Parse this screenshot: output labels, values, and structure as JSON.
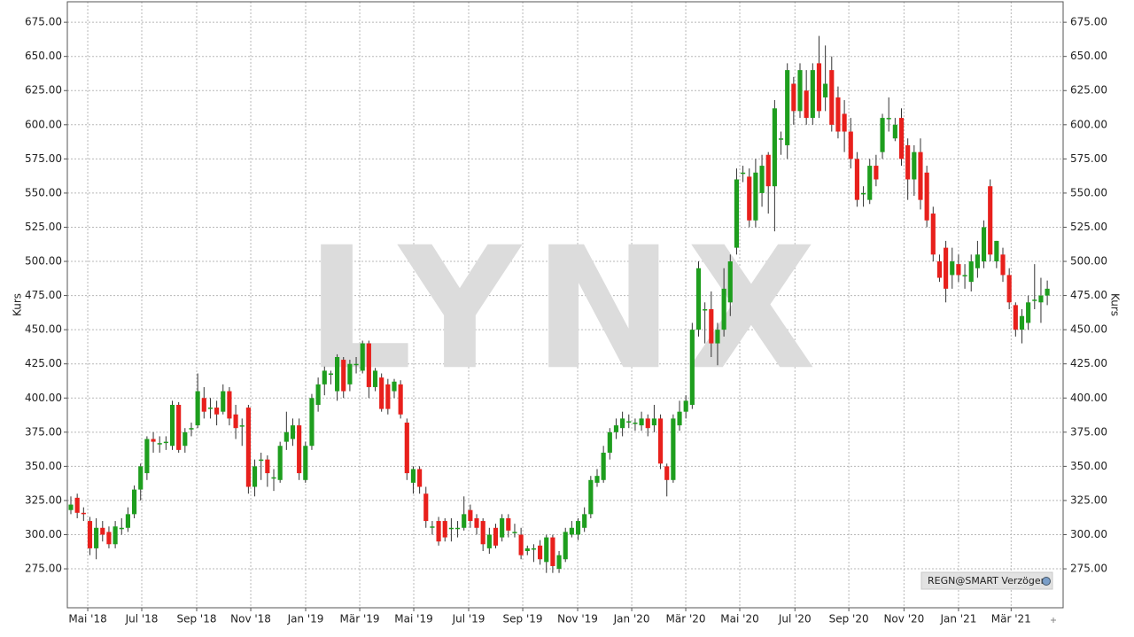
{
  "chart_data": {
    "type": "candlestick",
    "y_label": "Kurs",
    "watermark": "LYNX",
    "source_label": "REGN@SMART Verzögert",
    "up_color": "#1e9e1e",
    "down_color": "#e8201c",
    "grid": true,
    "ylim": [
      246.5,
      690
    ],
    "yticks": [
      {
        "value": 275,
        "label": "275.00"
      },
      {
        "value": 300,
        "label": "300.00"
      },
      {
        "value": 325,
        "label": "325.00"
      },
      {
        "value": 350,
        "label": "350.00"
      },
      {
        "value": 375,
        "label": "375.00"
      },
      {
        "value": 400,
        "label": "400.00"
      },
      {
        "value": 425,
        "label": "425.00"
      },
      {
        "value": 450,
        "label": "450.00"
      },
      {
        "value": 475,
        "label": "475.00"
      },
      {
        "value": 500,
        "label": "500.00"
      },
      {
        "value": 525,
        "label": "525.00"
      },
      {
        "value": 550,
        "label": "550.00"
      },
      {
        "value": 575,
        "label": "575.00"
      },
      {
        "value": 600,
        "label": "600.00"
      },
      {
        "value": 625,
        "label": "625.00"
      },
      {
        "value": 650,
        "label": "650.00"
      },
      {
        "value": 675,
        "label": "675.00"
      }
    ],
    "xlim": [
      -0.56,
      156.5
    ],
    "xticks": [
      {
        "value": 2.66,
        "label": "Mai '18"
      },
      {
        "value": 11.18,
        "label": "Jul '18"
      },
      {
        "value": 19.84,
        "label": "Sep '18"
      },
      {
        "value": 28.37,
        "label": "Nov '18"
      },
      {
        "value": 37.03,
        "label": "Jan '19"
      },
      {
        "value": 45.56,
        "label": "Mär '19"
      },
      {
        "value": 54.08,
        "label": "Mai '19"
      },
      {
        "value": 62.74,
        "label": "Jul '19"
      },
      {
        "value": 71.27,
        "label": "Sep '19"
      },
      {
        "value": 79.93,
        "label": "Nov '19"
      },
      {
        "value": 88.46,
        "label": "Jan '20"
      },
      {
        "value": 96.98,
        "label": "Mär '20"
      },
      {
        "value": 105.5,
        "label": "Mai '20"
      },
      {
        "value": 114.2,
        "label": "Jul '20"
      },
      {
        "value": 122.7,
        "label": "Sep '20"
      },
      {
        "value": 131.4,
        "label": "Nov '20"
      },
      {
        "value": 140.0,
        "label": "Jan '21"
      },
      {
        "value": 148.3,
        "label": "Mär '21"
      }
    ],
    "candles": [
      [
        318,
        328,
        315,
        322
      ],
      [
        327,
        330,
        312,
        316
      ],
      [
        316,
        320,
        310,
        315
      ],
      [
        310,
        313,
        285,
        290
      ],
      [
        290,
        312,
        282,
        305
      ],
      [
        305,
        310,
        295,
        300
      ],
      [
        302,
        306,
        290,
        293
      ],
      [
        293,
        310,
        290,
        306
      ],
      [
        305,
        312,
        300,
        305
      ],
      [
        305,
        320,
        302,
        315
      ],
      [
        315,
        336,
        312,
        333
      ],
      [
        333,
        352,
        325,
        350
      ],
      [
        345,
        372,
        340,
        370
      ],
      [
        370,
        375,
        360,
        368
      ],
      [
        367,
        372,
        360,
        367
      ],
      [
        368,
        372,
        362,
        368
      ],
      [
        365,
        398,
        362,
        395
      ],
      [
        395,
        397,
        360,
        362
      ],
      [
        365,
        378,
        360,
        375
      ],
      [
        377,
        382,
        372,
        378
      ],
      [
        380,
        418,
        378,
        405
      ],
      [
        400,
        408,
        385,
        390
      ],
      [
        393,
        400,
        385,
        393
      ],
      [
        393,
        398,
        380,
        388
      ],
      [
        390,
        410,
        388,
        405
      ],
      [
        405,
        408,
        380,
        385
      ],
      [
        388,
        395,
        370,
        378
      ],
      [
        380,
        385,
        365,
        380
      ],
      [
        393,
        395,
        330,
        335
      ],
      [
        335,
        355,
        328,
        350
      ],
      [
        355,
        360,
        340,
        355
      ],
      [
        355,
        358,
        335,
        345
      ],
      [
        342,
        348,
        332,
        342
      ],
      [
        340,
        368,
        338,
        365
      ],
      [
        368,
        390,
        362,
        375
      ],
      [
        370,
        385,
        365,
        380
      ],
      [
        380,
        385,
        340,
        345
      ],
      [
        340,
        368,
        338,
        365
      ],
      [
        365,
        403,
        362,
        400
      ],
      [
        395,
        415,
        390,
        410
      ],
      [
        410,
        423,
        402,
        420
      ],
      [
        418,
        420,
        410,
        418
      ],
      [
        405,
        432,
        398,
        430
      ],
      [
        428,
        430,
        400,
        405
      ],
      [
        410,
        428,
        405,
        425
      ],
      [
        425,
        430,
        418,
        425
      ],
      [
        420,
        442,
        418,
        440
      ],
      [
        440,
        442,
        400,
        408
      ],
      [
        408,
        422,
        405,
        420
      ],
      [
        415,
        418,
        390,
        392
      ],
      [
        410,
        414,
        388,
        392
      ],
      [
        405,
        414,
        400,
        412
      ],
      [
        410,
        413,
        385,
        388
      ],
      [
        382,
        385,
        340,
        345
      ],
      [
        338,
        350,
        330,
        348
      ],
      [
        348,
        350,
        330,
        335
      ],
      [
        330,
        335,
        305,
        310
      ],
      [
        306,
        310,
        300,
        306
      ],
      [
        310,
        313,
        292,
        295
      ],
      [
        310,
        312,
        295,
        298
      ],
      [
        305,
        312,
        295,
        305
      ],
      [
        305,
        310,
        298,
        305
      ],
      [
        305,
        328,
        303,
        315
      ],
      [
        318,
        322,
        305,
        310
      ],
      [
        312,
        315,
        300,
        305
      ],
      [
        310,
        312,
        288,
        293
      ],
      [
        290,
        305,
        286,
        300
      ],
      [
        305,
        308,
        290,
        292
      ],
      [
        298,
        315,
        295,
        312
      ],
      [
        312,
        315,
        298,
        303
      ],
      [
        302,
        308,
        298,
        302
      ],
      [
        300,
        305,
        282,
        285
      ],
      [
        288,
        292,
        285,
        290
      ],
      [
        290,
        293,
        280,
        290
      ],
      [
        292,
        296,
        278,
        282
      ],
      [
        280,
        300,
        272,
        298
      ],
      [
        298,
        300,
        272,
        277
      ],
      [
        275,
        288,
        272,
        285
      ],
      [
        282,
        305,
        280,
        302
      ],
      [
        300,
        310,
        298,
        305
      ],
      [
        300,
        312,
        296,
        310
      ],
      [
        305,
        320,
        302,
        315
      ],
      [
        315,
        343,
        312,
        340
      ],
      [
        338,
        348,
        335,
        343
      ],
      [
        340,
        365,
        338,
        360
      ],
      [
        360,
        378,
        355,
        375
      ],
      [
        375,
        385,
        370,
        380
      ],
      [
        378,
        390,
        372,
        385
      ],
      [
        383,
        388,
        378,
        383
      ],
      [
        382,
        385,
        376,
        382
      ],
      [
        380,
        390,
        376,
        385
      ],
      [
        385,
        388,
        372,
        378
      ],
      [
        380,
        395,
        375,
        385
      ],
      [
        385,
        388,
        348,
        352
      ],
      [
        350,
        352,
        328,
        340
      ],
      [
        340,
        388,
        338,
        385
      ],
      [
        380,
        398,
        376,
        390
      ],
      [
        390,
        402,
        385,
        398
      ],
      [
        395,
        455,
        392,
        450
      ],
      [
        450,
        500,
        445,
        495
      ],
      [
        465,
        470,
        440,
        465
      ],
      [
        465,
        478,
        430,
        440
      ],
      [
        440,
        455,
        424,
        450
      ],
      [
        450,
        495,
        445,
        480
      ],
      [
        470,
        505,
        460,
        500
      ],
      [
        510,
        568,
        505,
        560
      ],
      [
        565,
        570,
        558,
        565
      ],
      [
        562,
        568,
        525,
        530
      ],
      [
        530,
        575,
        525,
        565
      ],
      [
        550,
        578,
        540,
        570
      ],
      [
        578,
        580,
        535,
        555
      ],
      [
        555,
        618,
        522,
        612
      ],
      [
        590,
        595,
        578,
        590
      ],
      [
        585,
        645,
        575,
        640
      ],
      [
        630,
        635,
        600,
        610
      ],
      [
        610,
        645,
        605,
        640
      ],
      [
        625,
        640,
        600,
        605
      ],
      [
        605,
        645,
        600,
        640
      ],
      [
        645,
        665,
        605,
        610
      ],
      [
        620,
        658,
        610,
        630
      ],
      [
        640,
        650,
        595,
        600
      ],
      [
        620,
        628,
        590,
        595
      ],
      [
        608,
        618,
        580,
        595
      ],
      [
        595,
        605,
        568,
        575
      ],
      [
        575,
        580,
        540,
        545
      ],
      [
        550,
        555,
        540,
        550
      ],
      [
        545,
        575,
        542,
        570
      ],
      [
        570,
        578,
        555,
        560
      ],
      [
        580,
        608,
        575,
        605
      ],
      [
        605,
        620,
        595,
        605
      ],
      [
        590,
        605,
        588,
        600
      ],
      [
        605,
        612,
        570,
        575
      ],
      [
        585,
        590,
        545,
        560
      ],
      [
        560,
        585,
        548,
        580
      ],
      [
        580,
        590,
        538,
        545
      ],
      [
        565,
        570,
        525,
        530
      ],
      [
        535,
        540,
        500,
        505
      ],
      [
        500,
        505,
        485,
        488
      ],
      [
        510,
        515,
        470,
        480
      ],
      [
        490,
        510,
        480,
        500
      ],
      [
        498,
        505,
        485,
        490
      ],
      [
        490,
        498,
        480,
        490
      ],
      [
        485,
        505,
        478,
        500
      ],
      [
        495,
        515,
        488,
        505
      ],
      [
        500,
        530,
        495,
        525
      ],
      [
        555,
        560,
        500,
        505
      ],
      [
        500,
        515,
        495,
        515
      ],
      [
        505,
        510,
        485,
        490
      ],
      [
        490,
        495,
        465,
        470
      ],
      [
        468,
        470,
        445,
        450
      ],
      [
        450,
        465,
        440,
        460
      ],
      [
        455,
        475,
        450,
        470
      ],
      [
        472,
        498,
        465,
        472
      ],
      [
        470,
        488,
        455,
        475
      ],
      [
        475,
        486,
        468,
        480
      ]
    ]
  }
}
